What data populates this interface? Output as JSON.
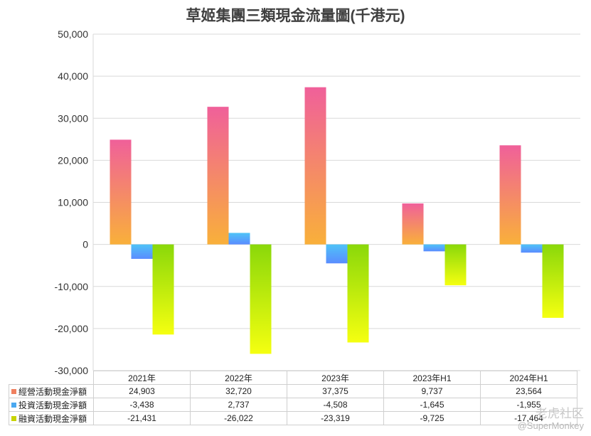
{
  "chart_data": {
    "type": "bar",
    "title": "草姬集團三類現金流量圖(千港元)",
    "categories": [
      "2021年",
      "2022年",
      "2023年",
      "2023年H1",
      "2024年H1"
    ],
    "series": [
      {
        "name": "經營活動現金淨額",
        "values": [
          24903,
          32720,
          37375,
          9737,
          23564
        ],
        "color_top": "#f0609a",
        "color_bottom": "#f9b03a",
        "swatch": "#f08060"
      },
      {
        "name": "投資活動現金淨額",
        "values": [
          -3438,
          2737,
          -4508,
          -1645,
          -1955
        ],
        "color_top": "#4fc3f7",
        "color_bottom": "#5a8cff",
        "swatch": "#4aa8f0"
      },
      {
        "name": "融資活動現金淨額",
        "values": [
          -21431,
          -26022,
          -23319,
          -9725,
          -17464
        ],
        "color_top": "#8ad80a",
        "color_bottom": "#f5ff10",
        "swatch": "#c8d400"
      }
    ],
    "table_values": [
      [
        "24,903",
        "32,720",
        "37,375",
        "9,737",
        "23,564"
      ],
      [
        "-3,438",
        "2,737",
        "-4,508",
        "-1,645",
        "-1,955"
      ],
      [
        "-21,431",
        "-26,022",
        "-23,319",
        "-9,725",
        "-17,464"
      ]
    ],
    "ylim": [
      -30000,
      50000
    ],
    "yticks": [
      "50,000",
      "40,000",
      "30,000",
      "20,000",
      "10,000",
      "0",
      "-10,000",
      "-20,000",
      "-30,000"
    ],
    "grid": true
  },
  "watermark": {
    "line1": "老虎社区",
    "line2": "@SuperMonkey"
  }
}
